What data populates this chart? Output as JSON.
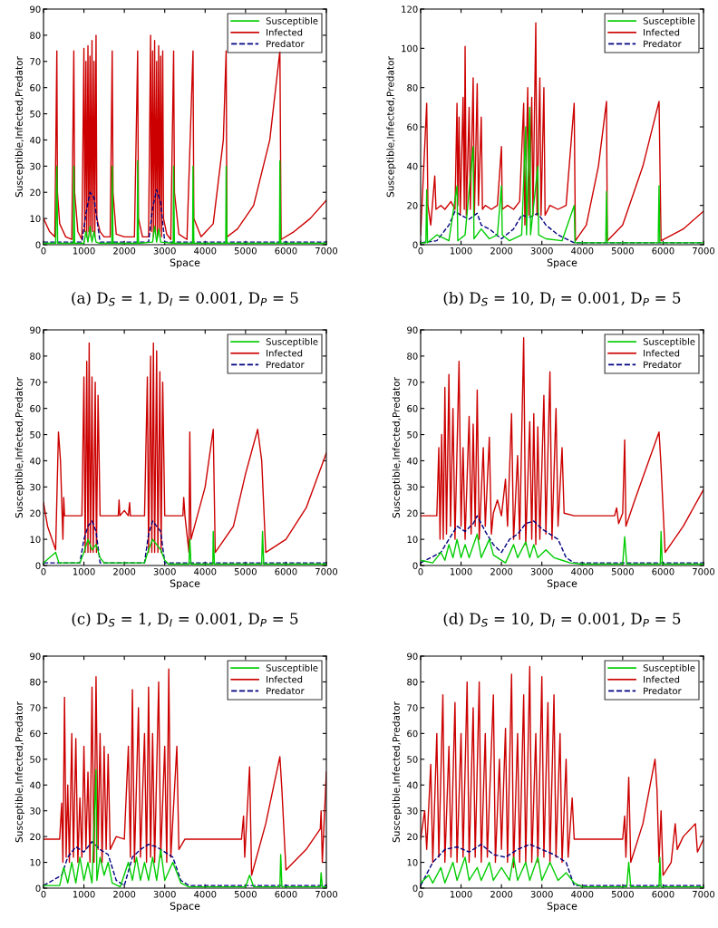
{
  "chart_data": [
    {
      "type": "line",
      "title": "(a) D$_{S}$ = 1, D$_{I}$ = 0.001, D$_{P}$ = 5",
      "xlabel": "Space",
      "ylabel": "Susceptible,Infected,Predator",
      "xlim": [
        0,
        7000
      ],
      "ylim": [
        0,
        90
      ],
      "xticks": [
        0,
        1000,
        2000,
        3000,
        4000,
        5000,
        6000,
        7000
      ],
      "yticks": [
        0,
        10,
        20,
        30,
        40,
        50,
        60,
        70,
        80,
        90
      ],
      "legend": "top right",
      "series": [
        {
          "name": "Susceptible",
          "color": "#00cc00",
          "line_style": "solid",
          "x": [
            0,
            300,
            330,
            350,
            740,
            750,
            770,
            1000,
            1050,
            1100,
            1150,
            1200,
            1250,
            1300,
            1400,
            1690,
            1700,
            1720,
            2320,
            2330,
            2350,
            2700,
            2750,
            2800,
            2850,
            2900,
            3210,
            3220,
            3240,
            3690,
            3700,
            3720,
            4510,
            4520,
            4540,
            5840,
            5850,
            5870,
            7000
          ],
          "values": [
            0.5,
            0.5,
            30,
            0.5,
            0.5,
            30,
            0.5,
            0.5,
            5,
            1,
            7,
            1,
            5,
            1,
            0.5,
            0.5,
            30,
            0.5,
            0.5,
            32,
            0.5,
            1,
            7,
            1,
            6,
            1,
            0.5,
            30,
            0.5,
            0.5,
            30,
            0.5,
            0.5,
            30,
            0.5,
            0.5,
            32,
            0.5,
            0.5
          ]
        },
        {
          "name": "Infected",
          "color": "#cc0000",
          "line_style": "solid",
          "x": [
            0,
            150,
            280,
            330,
            345,
            400,
            550,
            700,
            750,
            770,
            850,
            950,
            1000,
            1020,
            1050,
            1070,
            1100,
            1120,
            1150,
            1170,
            1200,
            1220,
            1250,
            1270,
            1300,
            1320,
            1400,
            1500,
            1650,
            1700,
            1720,
            1800,
            2000,
            2250,
            2330,
            2350,
            2450,
            2600,
            2650,
            2670,
            2700,
            2720,
            2750,
            2770,
            2800,
            2820,
            2850,
            2870,
            2900,
            2920,
            2950,
            2970,
            3050,
            3150,
            3220,
            3240,
            3350,
            3550,
            3700,
            3720,
            3900,
            4200,
            4450,
            4520,
            4540,
            4800,
            5200,
            5600,
            5850,
            5880,
            6200,
            6600,
            7000
          ],
          "values": [
            10,
            5,
            3,
            74,
            20,
            8,
            3,
            2,
            74,
            20,
            5,
            2,
            75,
            5,
            70,
            3,
            76,
            5,
            72,
            3,
            78,
            5,
            70,
            3,
            80,
            10,
            5,
            3,
            3,
            74,
            20,
            4,
            3,
            3,
            74,
            10,
            3,
            3,
            80,
            5,
            74,
            3,
            78,
            5,
            70,
            3,
            76,
            5,
            72,
            3,
            74,
            10,
            4,
            2,
            74,
            20,
            4,
            2,
            74,
            10,
            3,
            8,
            40,
            74,
            3,
            6,
            15,
            40,
            74,
            2,
            5,
            10,
            17
          ]
        },
        {
          "name": "Predator",
          "color": "#000080",
          "line_style": "dashed",
          "x": [
            0,
            950,
            1050,
            1150,
            1250,
            1300,
            1400,
            2600,
            2700,
            2800,
            2900,
            3000,
            7000
          ],
          "values": [
            1,
            1,
            12,
            20,
            18,
            12,
            1,
            1,
            14,
            21,
            16,
            1,
            1
          ]
        }
      ]
    },
    {
      "type": "line",
      "title": "(b) D$_{S}$ = 10, D$_{I}$ = 0.001, D$_{P}$ = 5",
      "xlabel": "Space",
      "ylabel": "Susceptible,Infected,Predator",
      "xlim": [
        0,
        7000
      ],
      "ylim": [
        0,
        120
      ],
      "xticks": [
        0,
        1000,
        2000,
        3000,
        4000,
        5000,
        6000,
        7000
      ],
      "yticks": [
        0,
        20,
        40,
        60,
        80,
        100,
        120
      ],
      "legend": "top right",
      "series": [
        {
          "name": "Susceptible",
          "color": "#00cc00",
          "line_style": "solid",
          "x": [
            0,
            130,
            150,
            170,
            400,
            700,
            900,
            920,
            1100,
            1300,
            1320,
            1500,
            1700,
            1900,
            2000,
            2020,
            2200,
            2500,
            2600,
            2620,
            2700,
            2720,
            2900,
            2920,
            3100,
            3500,
            3800,
            3820,
            4580,
            4600,
            4620,
            5880,
            5900,
            5920,
            7000
          ],
          "values": [
            1,
            1,
            28,
            1,
            5,
            2,
            30,
            2,
            5,
            50,
            3,
            8,
            3,
            5,
            30,
            5,
            2,
            5,
            60,
            5,
            70,
            5,
            40,
            5,
            3,
            2,
            20,
            1,
            1,
            27,
            1,
            1,
            30,
            1,
            1
          ]
        },
        {
          "name": "Infected",
          "color": "#cc0000",
          "line_style": "solid",
          "x": [
            0,
            150,
            180,
            250,
            350,
            380,
            500,
            600,
            750,
            850,
            900,
            920,
            950,
            980,
            1050,
            1080,
            1100,
            1130,
            1200,
            1230,
            1300,
            1330,
            1400,
            1430,
            1500,
            1530,
            1600,
            1750,
            1900,
            2000,
            2020,
            2150,
            2300,
            2450,
            2550,
            2580,
            2650,
            2680,
            2750,
            2780,
            2850,
            2880,
            2950,
            2980,
            3050,
            3080,
            3200,
            3400,
            3600,
            3800,
            3830,
            4100,
            4400,
            4600,
            4620,
            5000,
            5500,
            5900,
            5950,
            6500,
            7000
          ],
          "values": [
            5,
            72,
            20,
            10,
            35,
            18,
            20,
            18,
            22,
            18,
            72,
            20,
            65,
            15,
            75,
            18,
            101,
            15,
            70,
            18,
            85,
            15,
            82,
            20,
            65,
            18,
            20,
            18,
            20,
            50,
            18,
            20,
            18,
            22,
            72,
            10,
            80,
            15,
            75,
            15,
            113,
            15,
            85,
            15,
            80,
            15,
            20,
            18,
            20,
            72,
            2,
            10,
            40,
            73,
            2,
            10,
            40,
            73,
            2,
            8,
            17
          ]
        },
        {
          "name": "Predator",
          "color": "#000080",
          "line_style": "dashed",
          "x": [
            0,
            400,
            700,
            850,
            1000,
            1200,
            1400,
            1500,
            1700,
            2000,
            2300,
            2500,
            2700,
            2900,
            3100,
            3400,
            3800,
            7000
          ],
          "values": [
            1,
            2,
            10,
            17,
            15,
            13,
            16,
            10,
            8,
            3,
            8,
            15,
            14,
            16,
            10,
            5,
            1,
            1
          ]
        }
      ]
    },
    {
      "type": "line",
      "title": "(c) D$_{S}$ = 1, D$_{I}$ = 0.001, D$_{P}$ = 5",
      "xlabel": "Space",
      "ylabel": "Susceptible,Infected,Predator",
      "xlim": [
        0,
        7000
      ],
      "ylim": [
        0,
        90
      ],
      "xticks": [
        0,
        1000,
        2000,
        3000,
        4000,
        5000,
        6000,
        7000
      ],
      "yticks": [
        0,
        10,
        20,
        30,
        40,
        50,
        60,
        70,
        80,
        90
      ],
      "legend": "top right",
      "series": [
        {
          "name": "Susceptible",
          "color": "#00cc00",
          "line_style": "solid",
          "x": [
            0,
            300,
            380,
            900,
            1000,
            1100,
            1200,
            1300,
            1400,
            1500,
            2500,
            2600,
            2700,
            2800,
            2900,
            3000,
            3100,
            3600,
            3620,
            3650,
            4190,
            4200,
            4230,
            5400,
            5420,
            5450,
            7000
          ],
          "values": [
            1,
            5,
            1,
            1,
            5,
            10,
            6,
            8,
            3,
            1,
            1,
            6,
            10,
            8,
            6,
            2,
            0.5,
            0.5,
            10,
            0.5,
            0.5,
            13,
            0.5,
            0.5,
            13,
            0.5,
            0.5
          ]
        },
        {
          "name": "Infected",
          "color": "#cc0000",
          "line_style": "solid",
          "x": [
            0,
            100,
            300,
            370,
            420,
            480,
            500,
            520,
            700,
            950,
            1000,
            1030,
            1070,
            1100,
            1130,
            1160,
            1200,
            1230,
            1280,
            1310,
            1350,
            1400,
            1600,
            1850,
            1870,
            1890,
            2000,
            2100,
            2130,
            2150,
            2500,
            2570,
            2600,
            2650,
            2680,
            2720,
            2750,
            2800,
            2830,
            2880,
            2910,
            2950,
            3000,
            3300,
            3450,
            3470,
            3500,
            3600,
            3620,
            3650,
            4000,
            4200,
            4250,
            4700,
            5000,
            5300,
            5400,
            5500,
            6000,
            6500,
            7000
          ],
          "values": [
            24,
            15,
            6,
            51,
            40,
            10,
            26,
            19,
            19,
            19,
            72,
            5,
            78,
            5,
            85,
            5,
            72,
            5,
            70,
            5,
            65,
            19,
            19,
            19,
            25,
            19,
            21,
            19,
            24,
            19,
            19,
            72,
            5,
            80,
            5,
            85,
            5,
            82,
            5,
            74,
            5,
            70,
            19,
            19,
            19,
            26,
            19,
            5,
            51,
            10,
            30,
            52,
            5,
            15,
            35,
            52,
            40,
            5,
            10,
            22,
            43
          ]
        },
        {
          "name": "Predator",
          "color": "#000080",
          "line_style": "dashed",
          "x": [
            0,
            900,
            1000,
            1100,
            1200,
            1300,
            1400,
            2500,
            2600,
            2700,
            2800,
            2900,
            3000,
            7000
          ],
          "values": [
            1,
            1,
            10,
            15,
            17,
            13,
            1,
            1,
            12,
            17,
            15,
            13,
            1,
            1
          ]
        }
      ]
    },
    {
      "type": "line",
      "title": "(d) D$_{S}$ = 10, D$_{I}$ = 0.001, D$_{P}$ = 5",
      "xlabel": "Space",
      "ylabel": "Susceptible,Infected,Predator",
      "xlim": [
        0,
        7000
      ],
      "ylim": [
        0,
        90
      ],
      "xticks": [
        0,
        1000,
        2000,
        3000,
        4000,
        5000,
        6000,
        7000
      ],
      "yticks": [
        0,
        10,
        20,
        30,
        40,
        50,
        60,
        70,
        80,
        90
      ],
      "legend": "top right",
      "series": [
        {
          "name": "Susceptible",
          "color": "#00cc00",
          "line_style": "solid",
          "x": [
            0,
            300,
            500,
            600,
            700,
            800,
            900,
            1000,
            1100,
            1200,
            1400,
            1500,
            1700,
            1800,
            2100,
            2300,
            2400,
            2600,
            2700,
            2800,
            2900,
            3100,
            3300,
            3500,
            3700,
            4000,
            5000,
            5050,
            5100,
            5930,
            5950,
            5980,
            7000
          ],
          "values": [
            2,
            1,
            5,
            2,
            8,
            3,
            10,
            3,
            8,
            3,
            12,
            3,
            10,
            4,
            1,
            8,
            3,
            9,
            3,
            8,
            3,
            6,
            3,
            2,
            1,
            0.5,
            0.5,
            11,
            0.5,
            0.5,
            13,
            0.5,
            0.5
          ]
        },
        {
          "name": "Infected",
          "color": "#cc0000",
          "line_style": "solid",
          "x": [
            0,
            400,
            450,
            480,
            520,
            560,
            600,
            640,
            700,
            740,
            800,
            850,
            950,
            1000,
            1050,
            1100,
            1200,
            1250,
            1300,
            1350,
            1400,
            1450,
            1550,
            1600,
            1700,
            1750,
            1800,
            1900,
            2000,
            2100,
            2150,
            2250,
            2300,
            2400,
            2450,
            2550,
            2600,
            2700,
            2750,
            2800,
            2850,
            2900,
            2950,
            3050,
            3100,
            3200,
            3250,
            3350,
            3400,
            3500,
            3550,
            3800,
            4500,
            4800,
            4850,
            4900,
            5000,
            5050,
            5080,
            5300,
            5600,
            5900,
            5950,
            6050,
            6500,
            7000
          ],
          "values": [
            19,
            19,
            45,
            10,
            50,
            10,
            68,
            12,
            73,
            15,
            60,
            10,
            78,
            15,
            45,
            10,
            57,
            12,
            54,
            15,
            67,
            10,
            45,
            15,
            49,
            12,
            20,
            25,
            19,
            33,
            15,
            58,
            10,
            42,
            10,
            87,
            8,
            55,
            10,
            58,
            8,
            53,
            10,
            65,
            12,
            74,
            10,
            60,
            15,
            45,
            20,
            19,
            19,
            19,
            22,
            16,
            20,
            48,
            15,
            25,
            38,
            51,
            38,
            5,
            15,
            29
          ]
        },
        {
          "name": "Predator",
          "color": "#000080",
          "line_style": "dashed",
          "x": [
            0,
            500,
            700,
            900,
            1100,
            1300,
            1400,
            1600,
            1800,
            2000,
            2200,
            2400,
            2600,
            2800,
            3000,
            3200,
            3400,
            3600,
            3800,
            7000
          ],
          "values": [
            1,
            5,
            10,
            15,
            13,
            16,
            19,
            13,
            8,
            5,
            10,
            12,
            16,
            17,
            14,
            12,
            10,
            3,
            1,
            1
          ]
        }
      ]
    },
    {
      "type": "line",
      "xlabel": "Space",
      "ylabel": "Susceptible,Infected,Predator",
      "xlim": [
        0,
        7000
      ],
      "ylim": [
        0,
        90
      ],
      "xticks": [
        0,
        1000,
        2000,
        3000,
        4000,
        5000,
        6000,
        7000
      ],
      "yticks": [
        0,
        10,
        20,
        30,
        40,
        50,
        60,
        70,
        80,
        90
      ],
      "legend": "top right",
      "series": [
        {
          "name": "Susceptible",
          "color": "#00cc00",
          "line_style": "solid",
          "x": [
            0,
            400,
            500,
            600,
            700,
            800,
            900,
            1000,
            1100,
            1200,
            1300,
            1320,
            1400,
            1500,
            1600,
            1700,
            1900,
            2100,
            2200,
            2300,
            2400,
            2500,
            2600,
            2700,
            2800,
            2900,
            3000,
            3200,
            3400,
            3600,
            5000,
            5100,
            5200,
            5850,
            5870,
            5900,
            6850,
            6870,
            6900,
            7000
          ],
          "values": [
            1,
            1,
            8,
            2,
            10,
            2,
            12,
            3,
            10,
            2,
            46,
            3,
            12,
            5,
            10,
            2,
            0.5,
            10,
            3,
            12,
            3,
            10,
            3,
            12,
            3,
            15,
            3,
            10,
            2,
            0.5,
            0.5,
            5,
            0.5,
            0.5,
            13,
            0.5,
            0.5,
            6,
            0.5,
            0.5
          ]
        },
        {
          "name": "Infected",
          "color": "#cc0000",
          "line_style": "solid",
          "x": [
            0,
            400,
            450,
            480,
            520,
            560,
            600,
            640,
            700,
            740,
            800,
            850,
            900,
            950,
            1000,
            1050,
            1100,
            1150,
            1200,
            1250,
            1300,
            1350,
            1400,
            1450,
            1500,
            1550,
            1600,
            1650,
            1800,
            2000,
            2100,
            2150,
            2200,
            2250,
            2350,
            2400,
            2500,
            2550,
            2600,
            2650,
            2700,
            2750,
            2850,
            2900,
            3000,
            3050,
            3100,
            3150,
            3300,
            3350,
            3500,
            4500,
            4900,
            4950,
            4980,
            5100,
            5150,
            5500,
            5850,
            5900,
            6000,
            6500,
            6850,
            6870,
            6900,
            7000
          ],
          "values": [
            19,
            19,
            33,
            10,
            74,
            12,
            40,
            10,
            60,
            12,
            58,
            10,
            35,
            12,
            55,
            15,
            45,
            10,
            78,
            10,
            82,
            15,
            60,
            10,
            55,
            15,
            52,
            15,
            20,
            19,
            55,
            12,
            77,
            10,
            70,
            12,
            60,
            10,
            78,
            12,
            60,
            10,
            80,
            12,
            55,
            10,
            85,
            12,
            55,
            15,
            19,
            19,
            19,
            28,
            12,
            47,
            5,
            25,
            51,
            38,
            7,
            15,
            23,
            30,
            10,
            45
          ]
        },
        {
          "name": "Predator",
          "color": "#000080",
          "line_style": "dashed",
          "x": [
            0,
            450,
            600,
            800,
            1000,
            1200,
            1400,
            1600,
            1800,
            2000,
            2200,
            2400,
            2600,
            2800,
            3000,
            3200,
            3400,
            3600,
            7000
          ],
          "values": [
            1,
            5,
            12,
            16,
            14,
            18,
            15,
            13,
            3,
            1,
            12,
            15,
            17,
            16,
            14,
            12,
            3,
            1,
            1
          ]
        }
      ]
    },
    {
      "type": "line",
      "xlabel": "Space",
      "ylabel": "Susceptible,Infected,Predator",
      "xlim": [
        0,
        7000
      ],
      "ylim": [
        0,
        90
      ],
      "xticks": [
        0,
        1000,
        2000,
        3000,
        4000,
        5000,
        6000,
        7000
      ],
      "yticks": [
        0,
        10,
        20,
        30,
        40,
        50,
        60,
        70,
        80,
        90
      ],
      "legend": "top right",
      "series": [
        {
          "name": "Susceptible",
          "color": "#00cc00",
          "line_style": "solid",
          "x": [
            0,
            200,
            300,
            500,
            600,
            800,
            900,
            1100,
            1200,
            1400,
            1500,
            1700,
            1800,
            2000,
            2200,
            2300,
            2400,
            2600,
            2700,
            2900,
            3000,
            3200,
            3400,
            3600,
            3800,
            4000,
            5100,
            5150,
            5200,
            5900,
            5920,
            5950,
            7000
          ],
          "values": [
            2,
            5,
            2,
            8,
            2,
            10,
            3,
            12,
            3,
            8,
            3,
            10,
            3,
            8,
            3,
            12,
            3,
            10,
            3,
            12,
            3,
            10,
            3,
            6,
            2,
            0.5,
            0.5,
            10,
            0.5,
            0.5,
            12,
            0.5,
            0.5
          ]
        },
        {
          "name": "Infected",
          "color": "#cc0000",
          "line_style": "solid",
          "x": [
            0,
            100,
            150,
            250,
            300,
            400,
            450,
            550,
            600,
            700,
            750,
            850,
            900,
            1000,
            1050,
            1150,
            1200,
            1300,
            1350,
            1450,
            1500,
            1600,
            1650,
            1800,
            1850,
            1950,
            2000,
            2100,
            2150,
            2250,
            2300,
            2400,
            2450,
            2550,
            2600,
            2700,
            2750,
            2850,
            2900,
            3000,
            3050,
            3150,
            3200,
            3300,
            3350,
            3450,
            3500,
            3600,
            3650,
            3750,
            3800,
            4500,
            5000,
            5050,
            5080,
            5150,
            5200,
            5500,
            5800,
            5850,
            5900,
            5950,
            6000,
            6200,
            6300,
            6350,
            6500,
            6800,
            6850,
            7000
          ],
          "values": [
            19,
            30,
            15,
            48,
            10,
            60,
            12,
            75,
            10,
            55,
            12,
            72,
            10,
            60,
            12,
            80,
            10,
            70,
            12,
            80,
            10,
            60,
            12,
            75,
            10,
            50,
            15,
            62,
            10,
            83,
            8,
            60,
            10,
            75,
            10,
            86,
            10,
            60,
            10,
            82,
            12,
            72,
            10,
            75,
            12,
            60,
            10,
            50,
            12,
            35,
            19,
            19,
            19,
            28,
            12,
            43,
            10,
            25,
            50,
            38,
            10,
            30,
            5,
            10,
            25,
            15,
            20,
            25,
            14,
            19
          ]
        },
        {
          "name": "Predator",
          "color": "#000080",
          "line_style": "dashed",
          "x": [
            0,
            300,
            600,
            900,
            1200,
            1500,
            1800,
            2100,
            2400,
            2700,
            3000,
            3300,
            3600,
            3800,
            7000
          ],
          "values": [
            1,
            10,
            15,
            16,
            14,
            17,
            13,
            12,
            15,
            17,
            15,
            13,
            10,
            1,
            1
          ]
        }
      ]
    }
  ]
}
